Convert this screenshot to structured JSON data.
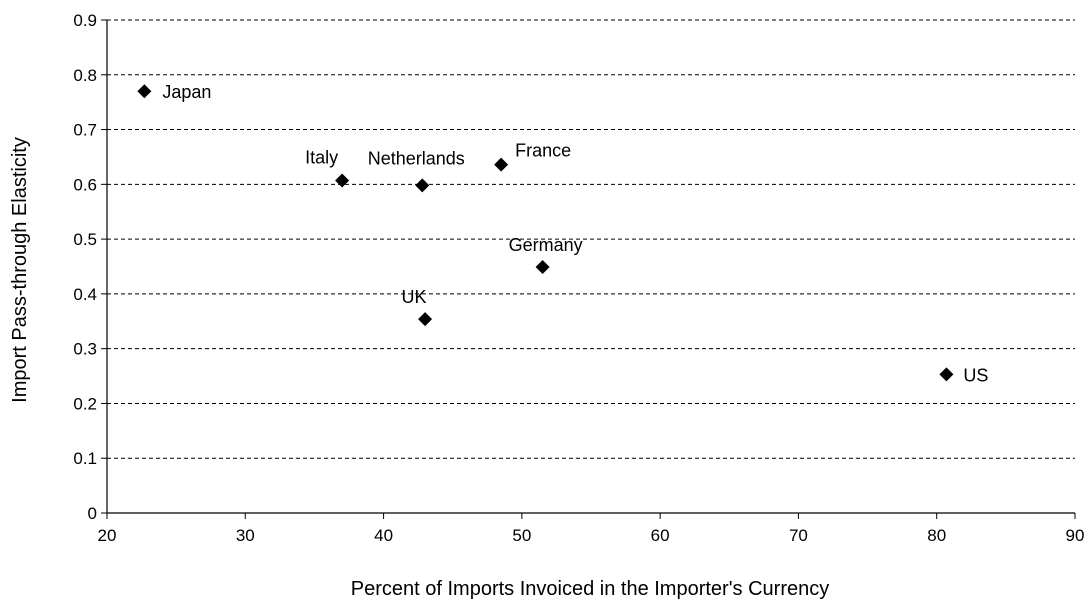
{
  "chart_data": {
    "type": "scatter",
    "xlabel": "Percent of Imports Invoiced in the Importer's Currency",
    "ylabel": "Import Pass-through Elasticity",
    "xlim": [
      20,
      90
    ],
    "ylim": [
      0,
      0.9
    ],
    "x_ticks": [
      "20",
      "30",
      "40",
      "50",
      "60",
      "70",
      "80",
      "90"
    ],
    "y_ticks": [
      "0",
      "0.1",
      "0.2",
      "0.3",
      "0.4",
      "0.5",
      "0.6",
      "0.7",
      "0.8",
      "0.9"
    ],
    "grid": "horizontal-dashed",
    "marker": "diamond",
    "marker_color": "#000000",
    "points": [
      {
        "label": "Japan",
        "x": 22.7,
        "y": 0.77
      },
      {
        "label": "Italy",
        "x": 37.0,
        "y": 0.607
      },
      {
        "label": "Netherlands",
        "x": 42.8,
        "y": 0.598
      },
      {
        "label": "France",
        "x": 48.5,
        "y": 0.636
      },
      {
        "label": "Germany",
        "x": 51.5,
        "y": 0.449
      },
      {
        "label": "UK",
        "x": 43.0,
        "y": 0.354
      },
      {
        "label": "US",
        "x": 80.7,
        "y": 0.253
      }
    ]
  }
}
